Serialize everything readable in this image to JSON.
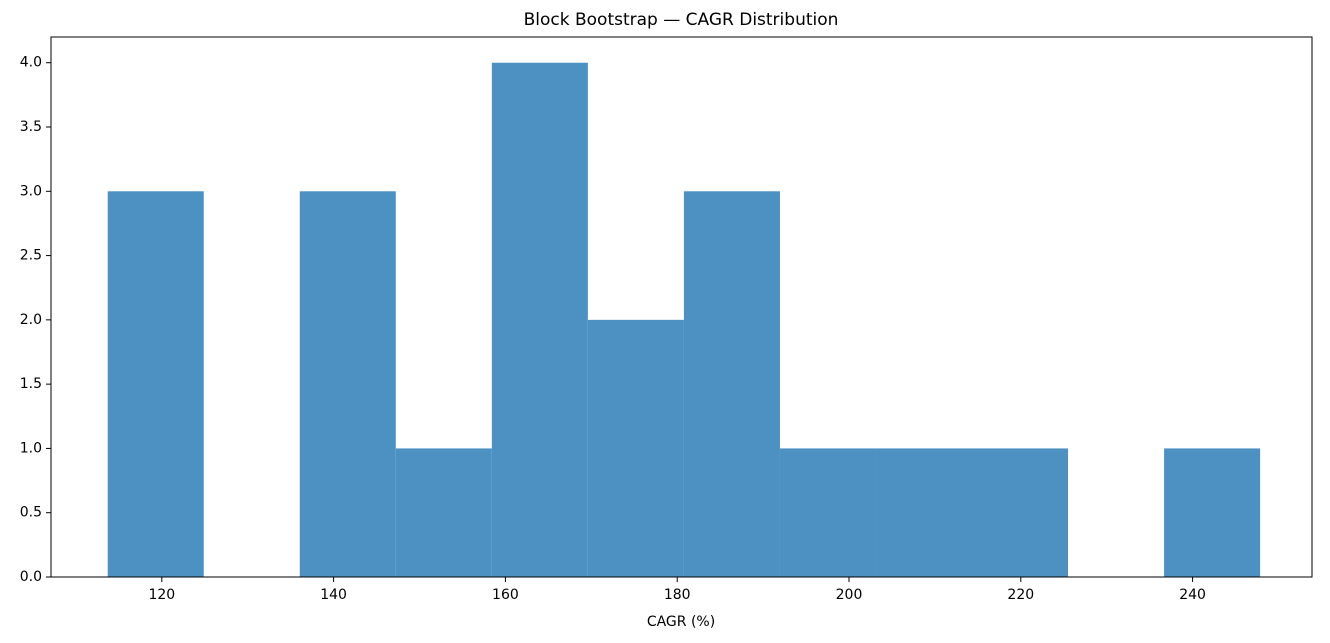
{
  "chart_data": {
    "type": "histogram",
    "title": "Block Bootstrap — CAGR Distribution",
    "x_label": "CAGR (%)",
    "bins": [
      113.7,
      124.88,
      136.06,
      147.24,
      158.42,
      169.6,
      180.78,
      191.96,
      203.14,
      214.32,
      225.5,
      236.68,
      247.86
    ],
    "values": [
      3,
      0,
      3,
      1,
      4,
      2,
      3,
      1,
      1,
      1,
      0,
      1
    ],
    "color": "#4c91c2",
    "xlim": [
      107.1,
      253.9
    ],
    "xticks": [
      120,
      140,
      160,
      180,
      200,
      220,
      240
    ],
    "ylim": [
      0,
      4.2
    ],
    "yticks": [
      {
        "value": 0,
        "label": "0.0"
      },
      {
        "value": 0.5,
        "label": "0.5"
      },
      {
        "value": 1,
        "label": "1.0"
      },
      {
        "value": 1.5,
        "label": "1.5"
      },
      {
        "value": 2,
        "label": "2.0"
      },
      {
        "value": 2.5,
        "label": "2.5"
      },
      {
        "value": 3,
        "label": "3.0"
      },
      {
        "value": 3.5,
        "label": "3.5"
      },
      {
        "value": 4,
        "label": "4.0"
      }
    ],
    "grid": false
  }
}
